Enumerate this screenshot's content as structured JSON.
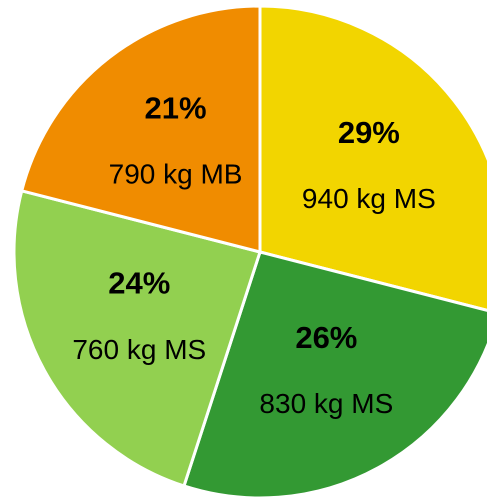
{
  "chart_data": {
    "type": "pie",
    "values": [
      29,
      26,
      24,
      21
    ],
    "value_labels": [
      "29%",
      "26%",
      "24%",
      "21%"
    ],
    "labels": [
      "940 kg MS",
      "830 kg MS",
      "760 kg MS",
      "790 kg MB"
    ],
    "colors": [
      "#f2d500",
      "#339933",
      "#92d050",
      "#f08c00"
    ]
  }
}
